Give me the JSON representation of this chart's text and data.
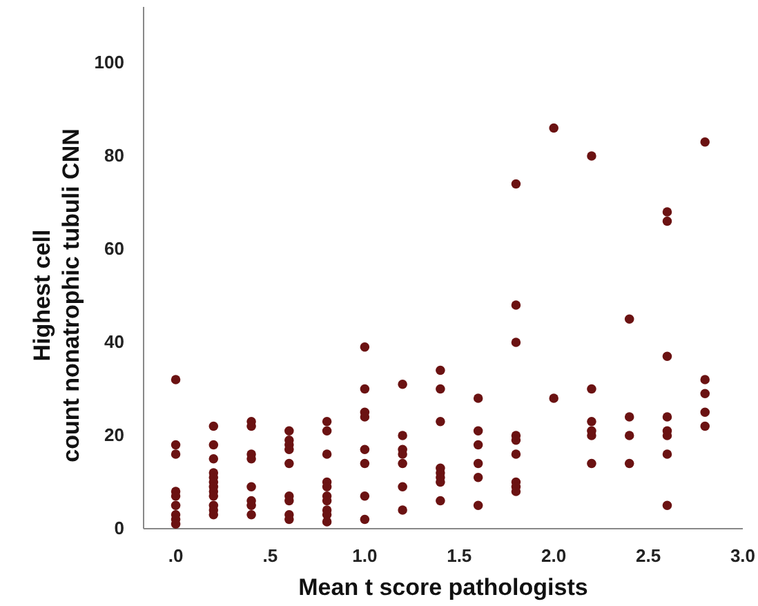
{
  "chart_data": {
    "type": "scatter",
    "xlabel": "Mean t score pathologists",
    "ylabel": "Highest cell count nonatrophic tubuli CNN",
    "xlim": [
      -0.17,
      3.0
    ],
    "ylim": [
      0,
      112
    ],
    "xticks": [
      {
        "value": 0,
        "label": ".0"
      },
      {
        "value": 0.5,
        "label": ".5"
      },
      {
        "value": 1,
        "label": "1.0"
      },
      {
        "value": 1.5,
        "label": "1.5"
      },
      {
        "value": 2,
        "label": "2.0"
      },
      {
        "value": 2.5,
        "label": "2.5"
      },
      {
        "value": 3,
        "label": "3.0"
      }
    ],
    "yticks": [
      0,
      20,
      40,
      60,
      80,
      100
    ],
    "grid": false,
    "marker": "circle",
    "series": [
      {
        "color": "#6b1212",
        "x": [
          0,
          0,
          0,
          0,
          0,
          0,
          0,
          0,
          0,
          0.2,
          0.2,
          0.2,
          0.2,
          0.2,
          0.2,
          0.2,
          0.2,
          0.2,
          0.2,
          0.2,
          0.2,
          0.4,
          0.4,
          0.4,
          0.4,
          0.4,
          0.4,
          0.4,
          0.4,
          0.6,
          0.6,
          0.6,
          0.6,
          0.6,
          0.6,
          0.6,
          0.6,
          0.6,
          0.8,
          0.8,
          0.8,
          0.8,
          0.8,
          0.8,
          0.8,
          0.8,
          0.8,
          0.8,
          1,
          1,
          1,
          1,
          1,
          1,
          1,
          1,
          1.2,
          1.2,
          1.2,
          1.2,
          1.2,
          1.2,
          1.2,
          1.4,
          1.4,
          1.4,
          1.4,
          1.4,
          1.4,
          1.4,
          1.4,
          1.6,
          1.6,
          1.6,
          1.6,
          1.6,
          1.6,
          1.8,
          1.8,
          1.8,
          1.8,
          1.8,
          1.8,
          1.8,
          1.8,
          1.8,
          2,
          2,
          2.2,
          2.2,
          2.2,
          2.2,
          2.2,
          2.2,
          2.4,
          2.4,
          2.4,
          2.4,
          2.6,
          2.6,
          2.6,
          2.6,
          2.6,
          2.6,
          2.6,
          2.6,
          2.8,
          2.8,
          2.8,
          2.8,
          2.8
        ],
        "values": [
          32,
          18,
          16,
          8,
          7,
          5,
          3,
          2,
          1,
          22,
          18,
          15,
          12,
          11,
          10,
          9,
          8,
          7,
          5,
          4,
          3,
          23,
          22,
          16,
          15,
          9,
          6,
          5,
          3,
          21,
          19,
          18,
          17,
          14,
          7,
          6,
          3,
          2,
          23,
          21,
          16,
          10,
          9,
          7,
          6,
          4,
          3,
          1.5,
          39,
          30,
          25,
          24,
          17,
          14,
          7,
          2,
          31,
          20,
          17,
          16,
          14,
          9,
          4,
          34,
          30,
          23,
          13,
          12,
          11,
          10,
          6,
          28,
          21,
          18,
          14,
          11,
          5,
          74,
          48,
          40,
          20,
          19,
          16,
          10,
          9,
          8,
          86,
          28,
          80,
          30,
          23,
          21,
          20,
          14,
          45,
          24,
          20,
          14,
          68,
          66,
          37,
          24,
          21,
          20,
          16,
          5,
          83,
          32,
          29,
          25,
          22
        ]
      }
    ]
  }
}
